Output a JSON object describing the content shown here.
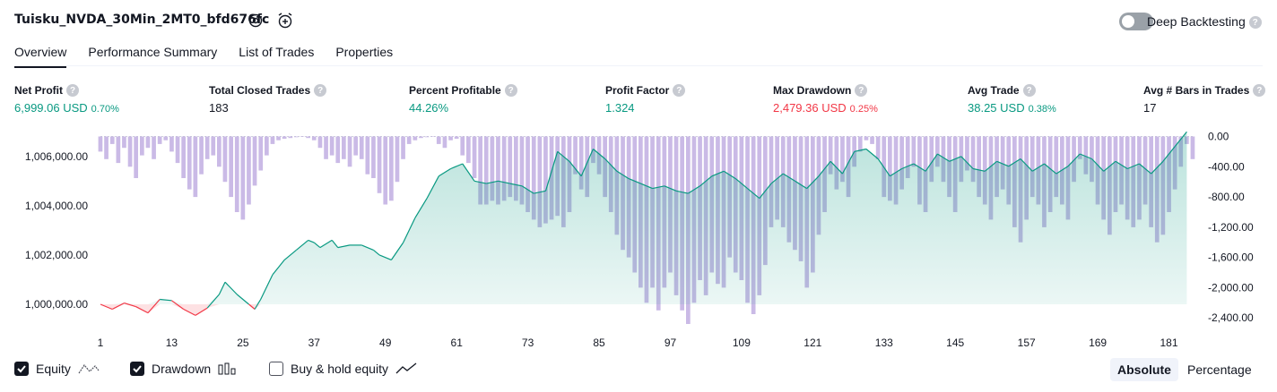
{
  "header": {
    "strategy_name": "Tuisku_NVDA_30Min_2MT0_bfd676fc",
    "settings_icon": "gear-icon",
    "alert_icon": "alarm-clock-plus-icon",
    "deep_backtesting_label": "Deep Backtesting",
    "deep_backtesting_on": false,
    "help": "?"
  },
  "tabs": [
    {
      "label": "Overview",
      "active": true
    },
    {
      "label": "Performance Summary",
      "active": false
    },
    {
      "label": "List of Trades",
      "active": false
    },
    {
      "label": "Properties",
      "active": false
    }
  ],
  "metrics": [
    {
      "label": "Net Profit",
      "value": "6,999.06 USD",
      "pct": "0.70%",
      "color": "#089981"
    },
    {
      "label": "Total Closed Trades",
      "value": "183",
      "pct": "",
      "color": "#131722"
    },
    {
      "label": "Percent Profitable",
      "value": "44.26%",
      "pct": "",
      "color": "#089981"
    },
    {
      "label": "Profit Factor",
      "value": "1.324",
      "pct": "",
      "color": "#089981"
    },
    {
      "label": "Max Drawdown",
      "value": "2,479.36 USD",
      "pct": "0.25%",
      "color": "#f23645"
    },
    {
      "label": "Avg Trade",
      "value": "38.25 USD",
      "pct": "0.38%",
      "color": "#089981"
    },
    {
      "label": "Avg # Bars in Trades",
      "value": "17",
      "pct": "",
      "color": "#131722"
    }
  ],
  "legend": {
    "equity": {
      "label": "Equity",
      "checked": true
    },
    "drawdown": {
      "label": "Drawdown",
      "checked": true
    },
    "buyhold": {
      "label": "Buy & hold equity",
      "checked": false
    }
  },
  "view_mode": {
    "absolute": "Absolute",
    "percentage": "Percentage",
    "selected": "Absolute"
  },
  "chart_data": {
    "type": "line",
    "x_ticks": [
      "1",
      "13",
      "25",
      "37",
      "49",
      "61",
      "73",
      "85",
      "97",
      "109",
      "121",
      "133",
      "145",
      "157",
      "169",
      "181"
    ],
    "left_ticks": [
      "1,006,000.00",
      "1,004,000.00",
      "1,002,000.00",
      "1,000,000.00"
    ],
    "left_tick_values": [
      1006000,
      1004000,
      1002000,
      1000000
    ],
    "right_ticks": [
      "0.00",
      "-400.00",
      "-800.00",
      "-1,200.00",
      "-1,600.00",
      "-2,000.00",
      "-2,400.00"
    ],
    "right_tick_values": [
      0,
      -400,
      -800,
      -1200,
      -1600,
      -2000,
      -2400
    ],
    "equity_ylim": [
      999200,
      1006900
    ],
    "drawdown_ylim": [
      -2480,
      30
    ],
    "baseline": 1000000,
    "colors": {
      "equity_line": "#089981",
      "equity_neg_line": "#f23645",
      "drawdown_bar": "#b39ddb"
    },
    "equity": [
      [
        1,
        1000000
      ],
      [
        3,
        999800
      ],
      [
        5,
        1000050
      ],
      [
        7,
        999900
      ],
      [
        9,
        999650
      ],
      [
        11,
        1000200
      ],
      [
        13,
        1000150
      ],
      [
        15,
        999800
      ],
      [
        17,
        999550
      ],
      [
        19,
        999850
      ],
      [
        21,
        1000400
      ],
      [
        22,
        1000900
      ],
      [
        24,
        1000400
      ],
      [
        26,
        1000000
      ],
      [
        27,
        999800
      ],
      [
        28,
        1000200
      ],
      [
        30,
        1001200
      ],
      [
        32,
        1001800
      ],
      [
        34,
        1002200
      ],
      [
        36,
        1002600
      ],
      [
        37,
        1002500
      ],
      [
        38,
        1002300
      ],
      [
        40,
        1002600
      ],
      [
        41,
        1002300
      ],
      [
        43,
        1002400
      ],
      [
        45,
        1002400
      ],
      [
        47,
        1002200
      ],
      [
        48,
        1002000
      ],
      [
        50,
        1001800
      ],
      [
        52,
        1002500
      ],
      [
        54,
        1003500
      ],
      [
        56,
        1004300
      ],
      [
        58,
        1005200
      ],
      [
        60,
        1005500
      ],
      [
        62,
        1005700
      ],
      [
        64,
        1005000
      ],
      [
        66,
        1004900
      ],
      [
        68,
        1005000
      ],
      [
        70,
        1004900
      ],
      [
        72,
        1004800
      ],
      [
        74,
        1004500
      ],
      [
        76,
        1004600
      ],
      [
        78,
        1006200
      ],
      [
        80,
        1005800
      ],
      [
        82,
        1005200
      ],
      [
        84,
        1006300
      ],
      [
        86,
        1005900
      ],
      [
        88,
        1005400
      ],
      [
        90,
        1005100
      ],
      [
        92,
        1004900
      ],
      [
        94,
        1004700
      ],
      [
        96,
        1004800
      ],
      [
        98,
        1004600
      ],
      [
        100,
        1004500
      ],
      [
        102,
        1004800
      ],
      [
        104,
        1005200
      ],
      [
        106,
        1005400
      ],
      [
        108,
        1005100
      ],
      [
        110,
        1004700
      ],
      [
        112,
        1004300
      ],
      [
        114,
        1004900
      ],
      [
        116,
        1005300
      ],
      [
        118,
        1005000
      ],
      [
        120,
        1004700
      ],
      [
        122,
        1005200
      ],
      [
        124,
        1005800
      ],
      [
        126,
        1005300
      ],
      [
        128,
        1006200
      ],
      [
        130,
        1006300
      ],
      [
        132,
        1005900
      ],
      [
        134,
        1005200
      ],
      [
        136,
        1005500
      ],
      [
        138,
        1005700
      ],
      [
        140,
        1005400
      ],
      [
        142,
        1006100
      ],
      [
        144,
        1005800
      ],
      [
        146,
        1006000
      ],
      [
        148,
        1005500
      ],
      [
        150,
        1005400
      ],
      [
        152,
        1005800
      ],
      [
        154,
        1005600
      ],
      [
        156,
        1005900
      ],
      [
        158,
        1005400
      ],
      [
        160,
        1005700
      ],
      [
        162,
        1005300
      ],
      [
        164,
        1005600
      ],
      [
        166,
        1006100
      ],
      [
        168,
        1005900
      ],
      [
        170,
        1005400
      ],
      [
        172,
        1005800
      ],
      [
        174,
        1005500
      ],
      [
        176,
        1005700
      ],
      [
        178,
        1005300
      ],
      [
        180,
        1005800
      ],
      [
        182,
        1006400
      ],
      [
        184,
        1007000
      ]
    ],
    "drawdown": [
      [
        1,
        -200
      ],
      [
        2,
        -300
      ],
      [
        3,
        -100
      ],
      [
        4,
        -350
      ],
      [
        5,
        -150
      ],
      [
        6,
        -400
      ],
      [
        7,
        -550
      ],
      [
        8,
        -250
      ],
      [
        9,
        -150
      ],
      [
        10,
        -300
      ],
      [
        11,
        -100
      ],
      [
        12,
        -50
      ],
      [
        13,
        -200
      ],
      [
        14,
        -350
      ],
      [
        15,
        -550
      ],
      [
        16,
        -700
      ],
      [
        17,
        -800
      ],
      [
        18,
        -500
      ],
      [
        19,
        -300
      ],
      [
        20,
        -250
      ],
      [
        21,
        -400
      ],
      [
        22,
        -600
      ],
      [
        23,
        -800
      ],
      [
        24,
        -1000
      ],
      [
        25,
        -1100
      ],
      [
        26,
        -900
      ],
      [
        27,
        -650
      ],
      [
        28,
        -450
      ],
      [
        29,
        -250
      ],
      [
        30,
        -100
      ],
      [
        31,
        -50
      ],
      [
        32,
        -30
      ],
      [
        33,
        -20
      ],
      [
        34,
        -10
      ],
      [
        35,
        -5
      ],
      [
        36,
        -20
      ],
      [
        37,
        -50
      ],
      [
        38,
        -150
      ],
      [
        39,
        -300
      ],
      [
        40,
        -250
      ],
      [
        41,
        -350
      ],
      [
        42,
        -300
      ],
      [
        43,
        -400
      ],
      [
        44,
        -250
      ],
      [
        45,
        -300
      ],
      [
        46,
        -500
      ],
      [
        47,
        -550
      ],
      [
        48,
        -750
      ],
      [
        49,
        -900
      ],
      [
        50,
        -850
      ],
      [
        51,
        -600
      ],
      [
        52,
        -300
      ],
      [
        53,
        -100
      ],
      [
        54,
        -50
      ],
      [
        55,
        -20
      ],
      [
        56,
        -10
      ],
      [
        57,
        -5
      ],
      [
        58,
        -100
      ],
      [
        59,
        -150
      ],
      [
        60,
        -50
      ],
      [
        61,
        -30
      ],
      [
        62,
        -250
      ],
      [
        63,
        -350
      ],
      [
        64,
        -550
      ],
      [
        65,
        -900
      ],
      [
        66,
        -900
      ],
      [
        67,
        -850
      ],
      [
        68,
        -900
      ],
      [
        69,
        -850
      ],
      [
        70,
        -800
      ],
      [
        71,
        -850
      ],
      [
        72,
        -900
      ],
      [
        73,
        -1000
      ],
      [
        74,
        -1100
      ],
      [
        75,
        -1200
      ],
      [
        76,
        -1150
      ],
      [
        77,
        -1100
      ],
      [
        78,
        -1050
      ],
      [
        79,
        -1200
      ],
      [
        80,
        -1000
      ],
      [
        81,
        -500
      ],
      [
        82,
        -700
      ],
      [
        83,
        -800
      ],
      [
        84,
        -350
      ],
      [
        85,
        -500
      ],
      [
        86,
        -800
      ],
      [
        87,
        -1000
      ],
      [
        88,
        -1300
      ],
      [
        89,
        -1500
      ],
      [
        90,
        -1600
      ],
      [
        91,
        -1800
      ],
      [
        92,
        -2000
      ],
      [
        93,
        -2200
      ],
      [
        94,
        -2000
      ],
      [
        95,
        -2300
      ],
      [
        96,
        -2000
      ],
      [
        97,
        -1800
      ],
      [
        98,
        -2100
      ],
      [
        99,
        -2300
      ],
      [
        100,
        -2480
      ],
      [
        101,
        -2200
      ],
      [
        102,
        -1900
      ],
      [
        103,
        -2100
      ],
      [
        104,
        -1800
      ],
      [
        105,
        -1950
      ],
      [
        106,
        -2000
      ],
      [
        107,
        -1600
      ],
      [
        108,
        -1800
      ],
      [
        109,
        -1900
      ],
      [
        110,
        -2200
      ],
      [
        111,
        -2350
      ],
      [
        112,
        -2100
      ],
      [
        113,
        -1700
      ],
      [
        114,
        -1200
      ],
      [
        115,
        -1100
      ],
      [
        116,
        -1200
      ],
      [
        117,
        -1400
      ],
      [
        118,
        -1500
      ],
      [
        119,
        -1650
      ],
      [
        120,
        -2000
      ],
      [
        121,
        -1800
      ],
      [
        122,
        -1300
      ],
      [
        123,
        -1000
      ],
      [
        124,
        -500
      ],
      [
        125,
        -700
      ],
      [
        126,
        -600
      ],
      [
        127,
        -800
      ],
      [
        128,
        -400
      ],
      [
        129,
        -200
      ],
      [
        130,
        -50
      ],
      [
        131,
        -100
      ],
      [
        132,
        -300
      ],
      [
        133,
        -800
      ],
      [
        134,
        -850
      ],
      [
        135,
        -900
      ],
      [
        136,
        -700
      ],
      [
        137,
        -550
      ],
      [
        138,
        -400
      ],
      [
        139,
        -900
      ],
      [
        140,
        -1000
      ],
      [
        141,
        -600
      ],
      [
        142,
        -400
      ],
      [
        143,
        -600
      ],
      [
        144,
        -800
      ],
      [
        145,
        -1000
      ],
      [
        146,
        -600
      ],
      [
        147,
        -450
      ],
      [
        148,
        -600
      ],
      [
        149,
        -800
      ],
      [
        150,
        -900
      ],
      [
        151,
        -1100
      ],
      [
        152,
        -800
      ],
      [
        153,
        -700
      ],
      [
        154,
        -900
      ],
      [
        155,
        -1200
      ],
      [
        156,
        -1400
      ],
      [
        157,
        -1100
      ],
      [
        158,
        -800
      ],
      [
        159,
        -900
      ],
      [
        160,
        -1200
      ],
      [
        161,
        -1000
      ],
      [
        162,
        -800
      ],
      [
        163,
        -900
      ],
      [
        164,
        -1100
      ],
      [
        165,
        -600
      ],
      [
        166,
        -300
      ],
      [
        167,
        -500
      ],
      [
        168,
        -600
      ],
      [
        169,
        -900
      ],
      [
        170,
        -1100
      ],
      [
        171,
        -1300
      ],
      [
        172,
        -1000
      ],
      [
        173,
        -900
      ],
      [
        174,
        -1100
      ],
      [
        175,
        -1200
      ],
      [
        176,
        -1100
      ],
      [
        177,
        -900
      ],
      [
        178,
        -1200
      ],
      [
        179,
        -1400
      ],
      [
        180,
        -1300
      ],
      [
        181,
        -1000
      ],
      [
        182,
        -700
      ],
      [
        183,
        -400
      ],
      [
        184,
        -100
      ],
      [
        185,
        -300
      ]
    ]
  }
}
